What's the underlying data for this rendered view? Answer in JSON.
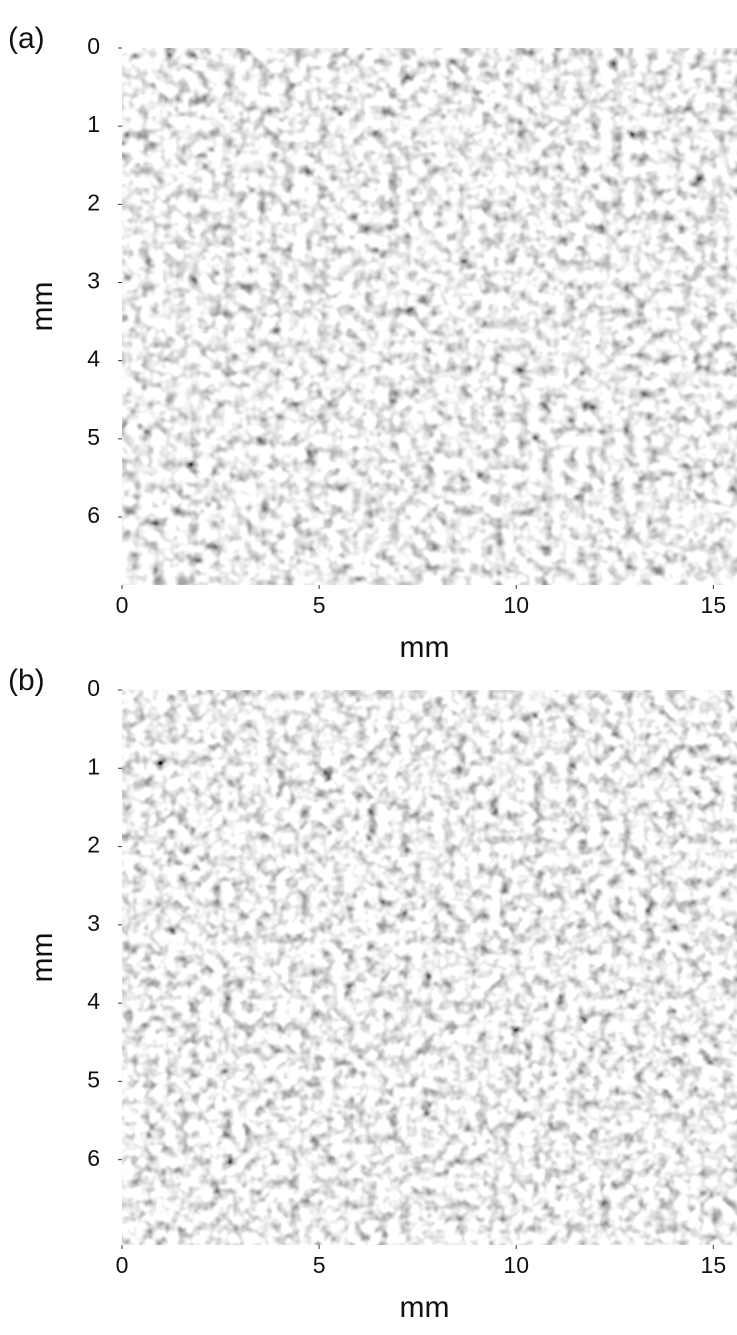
{
  "chart_data": [
    {
      "type": "image",
      "panel_label": "(a)",
      "xlabel": "mm",
      "ylabel": "mm",
      "xlim": [
        0,
        15.6
      ],
      "ylim": [
        0,
        6.87
      ],
      "y_inverted": true,
      "xticks": [
        0,
        5,
        10,
        15
      ],
      "yticks": [
        0,
        1,
        2,
        3,
        4,
        5,
        6
      ]
    },
    {
      "type": "image",
      "panel_label": "(b)",
      "xlabel": "mm",
      "ylabel": "mm",
      "xlim": [
        0,
        15.6
      ],
      "ylim": [
        0,
        7.09
      ],
      "y_inverted": true,
      "xticks": [
        0,
        5,
        10,
        15
      ],
      "yticks": [
        0,
        1,
        2,
        3,
        4,
        5,
        6
      ]
    }
  ]
}
